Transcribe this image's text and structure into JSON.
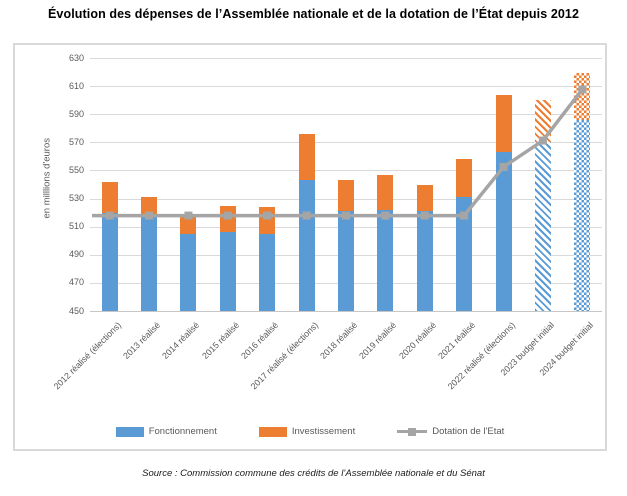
{
  "title": "Évolution des dépenses de l’Assemblée nationale et de la dotation de l’État depuis 2012",
  "source": "Source : Commission commune des crédits de l’Assemblée nationale et du Sénat",
  "legend": {
    "fonctionnement": "Fonctionnement",
    "investissement": "Investissement",
    "dotation": "Dotation de l'Etat"
  },
  "colors": {
    "fonctionnement": "#5B9BD5",
    "investissement": "#ED7D31",
    "dotation": "#A5A5A5",
    "gridline": "#D9D9D9",
    "axis_text": "#595959"
  },
  "chart_data": {
    "type": "bar",
    "stacked": true,
    "title": "Évolution des dépenses de l’Assemblée nationale et de la dotation de l’État depuis 2012",
    "ylabel": "en milllions d'euros",
    "ylim": [
      450,
      630
    ],
    "ytick_step": 20,
    "grid": true,
    "legend_position": "bottom",
    "categories": [
      "2012 réalisé (élections)",
      "2013 réalisé",
      "2014 réalisé",
      "2015 réalisé",
      "2016 réalisé",
      "2017 réalisé (élections)",
      "2018 réalisé",
      "2019 réalisé",
      "2020 réalisé",
      "2021 réalisé",
      "2022 réalisé (élections)",
      "2023 budget initial",
      "2024 budget initial"
    ],
    "bar_fill_styles": [
      "solid",
      "solid",
      "solid",
      "solid",
      "solid",
      "solid",
      "solid",
      "solid",
      "solid",
      "solid",
      "solid",
      "diagonal",
      "checker"
    ],
    "series": [
      {
        "name": "Fonctionnement",
        "type": "bar",
        "values": [
          520,
          518,
          505,
          506,
          505,
          543,
          521,
          522,
          521,
          531,
          563,
          570,
          586
        ]
      },
      {
        "name": "Investissement",
        "type": "bar",
        "values": [
          22,
          13,
          12,
          19,
          19,
          33,
          22,
          25,
          19,
          27,
          41,
          30,
          33
        ]
      },
      {
        "name": "Dotation de l'Etat",
        "type": "line",
        "values": [
          517.89,
          517.89,
          517.89,
          517.89,
          517.89,
          517.89,
          517.89,
          517.89,
          517.89,
          517.89,
          552.49,
          571.28,
          607.64
        ]
      }
    ]
  }
}
